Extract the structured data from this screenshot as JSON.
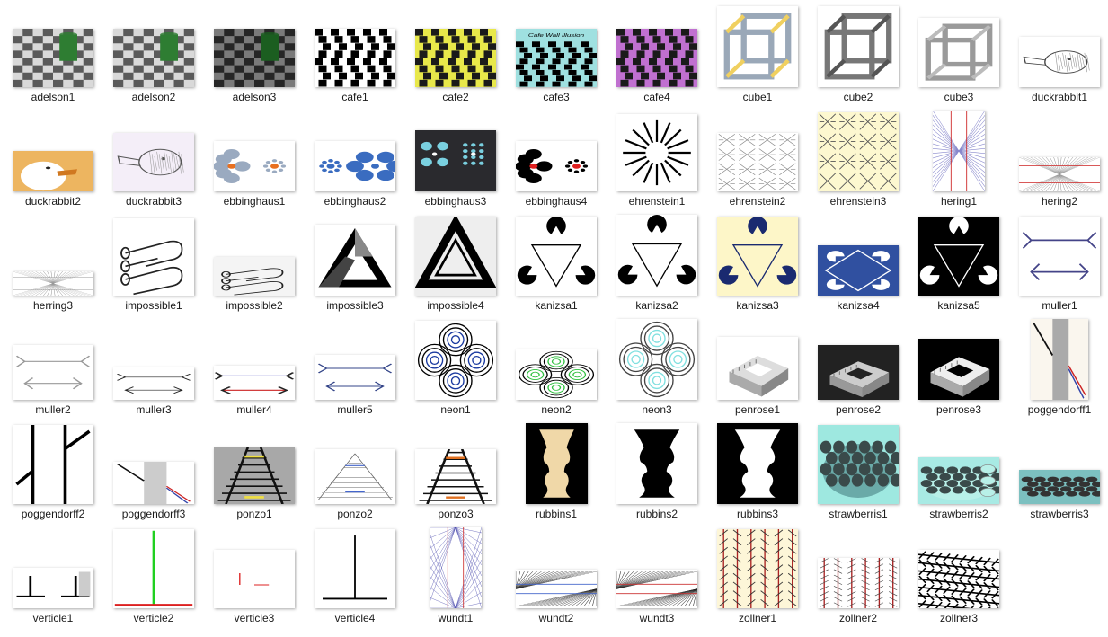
{
  "files": [
    {
      "name": "adelson1",
      "kind": "checker",
      "bg": "#d9d9d9",
      "fg": "#5a5a5a",
      "accent": "#2e7d32",
      "ratio": 0.72
    },
    {
      "name": "adelson2",
      "kind": "checker",
      "bg": "#d9d9d9",
      "fg": "#5a5a5a",
      "accent": "#2e7d32",
      "ratio": 0.72
    },
    {
      "name": "adelson3",
      "kind": "checker",
      "bg": "#7a7a7a",
      "fg": "#262626",
      "accent": "#1b5e20",
      "ratio": 0.72
    },
    {
      "name": "cafe1",
      "kind": "cafe",
      "bg": "#ffffff",
      "fg": "#000000",
      "accent": "#000000",
      "ratio": 0.72
    },
    {
      "name": "cafe2",
      "kind": "cafe",
      "bg": "#e8e84a",
      "fg": "#1a1a1a",
      "accent": "#1a1a1a",
      "ratio": 0.72
    },
    {
      "name": "cafe3",
      "kind": "cafe3",
      "bg": "#9fe0e0",
      "fg": "#000000",
      "accent": "#000000",
      "ratio": 0.72,
      "caption": "Cafe Wall Illusion"
    },
    {
      "name": "cafe4",
      "kind": "cafe",
      "bg": "#c070d0",
      "fg": "#1a1a1a",
      "accent": "#1a1a1a",
      "ratio": 0.72
    },
    {
      "name": "cube1",
      "kind": "cube",
      "bg": "#ffffff",
      "fg": "#9aa8b8",
      "accent": "#f0d060",
      "ratio": 1.0
    },
    {
      "name": "cube2",
      "kind": "cube",
      "bg": "#ffffff",
      "fg": "#777777",
      "accent": "#555555",
      "ratio": 1.0
    },
    {
      "name": "cube3",
      "kind": "cube",
      "bg": "#ffffff",
      "fg": "#9a9a9a",
      "accent": "#bbbbbb",
      "ratio": 0.85
    },
    {
      "name": "duckrabbit1",
      "kind": "sketch",
      "bg": "#ffffff",
      "fg": "#444444",
      "accent": "#888888",
      "ratio": 0.62
    },
    {
      "name": "duckrabbit2",
      "kind": "photo",
      "bg": "#e8c878",
      "fg": "#ffffff",
      "accent": "#d07820",
      "ratio": 0.5
    },
    {
      "name": "duckrabbit3",
      "kind": "sketch",
      "bg": "#f4eef8",
      "fg": "#555555",
      "accent": "#999999",
      "ratio": 0.72
    },
    {
      "name": "ebbinghaus1",
      "kind": "ebbing",
      "bg": "#ffffff",
      "fg": "#9aaac0",
      "accent": "#e87020",
      "ratio": 0.62
    },
    {
      "name": "ebbinghaus2",
      "kind": "ebbing2",
      "bg": "#ffffff",
      "fg": "#3a6cc0",
      "accent": "#3a6cc0",
      "ratio": 0.62
    },
    {
      "name": "ebbinghaus3",
      "kind": "ebbing3",
      "bg": "#2a2a2e",
      "fg": "#7ad0e0",
      "accent": "#ffffff",
      "ratio": 0.75
    },
    {
      "name": "ebbinghaus4",
      "kind": "ebbing",
      "bg": "#ffffff",
      "fg": "#000000",
      "accent": "#e02020",
      "ratio": 0.62
    },
    {
      "name": "ehrenstein1",
      "kind": "rays",
      "bg": "#ffffff",
      "fg": "#000000",
      "accent": "#000000",
      "ratio": 0.95
    },
    {
      "name": "ehrenstein2",
      "kind": "cross",
      "bg": "#ffffff",
      "fg": "#888888",
      "accent": "#888888",
      "ratio": 0.72
    },
    {
      "name": "ehrenstein3",
      "kind": "cross",
      "bg": "#fdf8d0",
      "fg": "#555555",
      "accent": "#555555",
      "ratio": 0.98
    },
    {
      "name": "hering1",
      "kind": "hering",
      "bg": "#ffffff",
      "fg": "#8888cc",
      "accent": "#cc2222",
      "ratio": 1.55
    },
    {
      "name": "hering2",
      "kind": "hering2",
      "bg": "#ffffff",
      "fg": "#999999",
      "accent": "#cc2222",
      "ratio": 0.42
    },
    {
      "name": "herring3",
      "kind": "hering2",
      "bg": "#ffffff",
      "fg": "#999999",
      "accent": "#999999",
      "ratio": 0.3
    },
    {
      "name": "impossible1",
      "kind": "tube",
      "bg": "#ffffff",
      "fg": "#222222",
      "accent": "#222222",
      "ratio": 0.95
    },
    {
      "name": "impossible2",
      "kind": "tube",
      "bg": "#f4f4f4",
      "fg": "#222222",
      "accent": "#222222",
      "ratio": 0.48
    },
    {
      "name": "impossible3",
      "kind": "tri",
      "bg": "#ffffff",
      "fg": "#000000",
      "accent": "#888888",
      "ratio": 0.88
    },
    {
      "name": "impossible4",
      "kind": "tri2",
      "bg": "#eeeeee",
      "fg": "#000000",
      "accent": "#ffffff",
      "ratio": 0.98
    },
    {
      "name": "kanizsa1",
      "kind": "kanizsa",
      "bg": "#ffffff",
      "fg": "#000000",
      "accent": "#000000",
      "ratio": 0.98
    },
    {
      "name": "kanizsa2",
      "kind": "kanizsa",
      "bg": "#ffffff",
      "fg": "#000000",
      "accent": "#000000",
      "ratio": 1.0
    },
    {
      "name": "kanizsa3",
      "kind": "kanizsa",
      "bg": "#fdf6c8",
      "fg": "#1a2a70",
      "accent": "#1a2a70",
      "ratio": 0.98
    },
    {
      "name": "kanizsa4",
      "kind": "kanizsa4",
      "bg": "#3050a0",
      "fg": "#ffffff",
      "accent": "#ffffff",
      "ratio": 0.62
    },
    {
      "name": "kanizsa5",
      "kind": "kanizsa",
      "bg": "#000000",
      "fg": "#ffffff",
      "accent": "#ffffff",
      "ratio": 0.98
    },
    {
      "name": "muller1",
      "kind": "muller",
      "bg": "#ffffff",
      "fg": "#444488",
      "accent": "#444488",
      "ratio": 0.98
    },
    {
      "name": "muller2",
      "kind": "muller",
      "bg": "#ffffff",
      "fg": "#999999",
      "accent": "#999999",
      "ratio": 0.68
    },
    {
      "name": "muller3",
      "kind": "muller",
      "bg": "#ffffff",
      "fg": "#222222",
      "accent": "#222222",
      "ratio": 0.4
    },
    {
      "name": "muller4",
      "kind": "muller4",
      "bg": "#ffffff",
      "fg": "#1a1ab0",
      "accent": "#cc2222",
      "ratio": 0.42
    },
    {
      "name": "muller5",
      "kind": "muller",
      "bg": "#ffffff",
      "fg": "#334488",
      "accent": "#334488",
      "ratio": 0.55
    },
    {
      "name": "neon1",
      "kind": "neon",
      "bg": "#ffffff",
      "fg": "#000000",
      "accent": "#1a3aa0",
      "ratio": 0.98
    },
    {
      "name": "neon2",
      "kind": "neon",
      "bg": "#ffffff",
      "fg": "#000000",
      "accent": "#30c040",
      "ratio": 0.62
    },
    {
      "name": "neon3",
      "kind": "neon",
      "bg": "#ffffff",
      "fg": "#444444",
      "accent": "#80e0e0",
      "ratio": 1.0
    },
    {
      "name": "penrose1",
      "kind": "stairs",
      "bg": "#ffffff",
      "fg": "#aaaaaa",
      "accent": "#dddddd",
      "ratio": 0.78
    },
    {
      "name": "penrose2",
      "kind": "stairs",
      "bg": "#222222",
      "fg": "#999999",
      "accent": "#cccccc",
      "ratio": 0.68
    },
    {
      "name": "penrose3",
      "kind": "stairs",
      "bg": "#000000",
      "fg": "#aaaaaa",
      "accent": "#eeeeee",
      "ratio": 0.75
    },
    {
      "name": "poggendorff1",
      "kind": "pogg",
      "bg": "#faf6ee",
      "fg": "#aaaaaa",
      "accent": "#3344aa",
      "ratio": 1.4
    },
    {
      "name": "poggendorff2",
      "kind": "pogg2",
      "bg": "#ffffff",
      "fg": "#000000",
      "accent": "#000000",
      "ratio": 0.98
    },
    {
      "name": "poggendorff3",
      "kind": "pogg",
      "bg": "#ffffff",
      "fg": "#cccccc",
      "accent": "#3344aa",
      "ratio": 0.52
    },
    {
      "name": "ponzo1",
      "kind": "rail",
      "bg": "#a8a8a8",
      "fg": "#111111",
      "accent": "#f0e040",
      "ratio": 0.7
    },
    {
      "name": "ponzo2",
      "kind": "ponzo2",
      "bg": "#ffffff",
      "fg": "#666666",
      "accent": "#4466cc",
      "ratio": 0.68
    },
    {
      "name": "ponzo3",
      "kind": "rail",
      "bg": "#ffffff",
      "fg": "#111111",
      "accent": "#e07020",
      "ratio": 0.68
    },
    {
      "name": "rubbins1",
      "kind": "vase",
      "bg": "#000000",
      "fg": "#f0d8a8",
      "accent": "#f0d8a8",
      "ratio": 1.3
    },
    {
      "name": "rubbins2",
      "kind": "vase2",
      "bg": "#ffffff",
      "fg": "#000000",
      "accent": "#000000",
      "ratio": 1.0
    },
    {
      "name": "rubbins3",
      "kind": "vase",
      "bg": "#000000",
      "fg": "#ffffff",
      "accent": "#ffffff",
      "ratio": 1.0
    },
    {
      "name": "strawberris1",
      "kind": "straw",
      "bg": "#9ee8e0",
      "fg": "#3a4a4a",
      "accent": "#6aaaa8",
      "ratio": 0.98
    },
    {
      "name": "strawberris2",
      "kind": "straw2",
      "bg": "#a8eae4",
      "fg": "#3a4a4a",
      "accent": "#b8f0e8",
      "ratio": 0.58
    },
    {
      "name": "strawberris3",
      "kind": "straw3",
      "bg": "#7cc0c0",
      "fg": "#333333",
      "accent": "#555555",
      "ratio": 0.42
    },
    {
      "name": "verticle1",
      "kind": "tee1",
      "bg": "#ffffff",
      "fg": "#000000",
      "accent": "#cccccc",
      "ratio": 0.5
    },
    {
      "name": "verticle2",
      "kind": "tee2",
      "bg": "#ffffff",
      "fg": "#20d020",
      "accent": "#dd2020",
      "ratio": 0.98
    },
    {
      "name": "verticle3",
      "kind": "tee3",
      "bg": "#ffffff",
      "fg": "#dd2020",
      "accent": "#dd2020",
      "ratio": 0.72
    },
    {
      "name": "verticle4",
      "kind": "tee4",
      "bg": "#ffffff",
      "fg": "#000000",
      "accent": "#000000",
      "ratio": 0.98
    },
    {
      "name": "wundt1",
      "kind": "wundt1",
      "bg": "#ffffff",
      "fg": "#4444aa",
      "accent": "#cc3333",
      "ratio": 1.55
    },
    {
      "name": "wundt2",
      "kind": "wundt",
      "bg": "#ffffff",
      "fg": "#222222",
      "accent": "#4466cc",
      "ratio": 0.48
    },
    {
      "name": "wundt3",
      "kind": "wundt",
      "bg": "#ffffff",
      "fg": "#222222",
      "accent": "#cc3333",
      "ratio": 0.48
    },
    {
      "name": "zollner1",
      "kind": "zoll",
      "bg": "#fdf6d8",
      "fg": "#aa2222",
      "accent": "#333333",
      "ratio": 0.98
    },
    {
      "name": "zollner2",
      "kind": "zoll",
      "bg": "#ffffff",
      "fg": "#aa2222",
      "accent": "#444444",
      "ratio": 0.62
    },
    {
      "name": "zollner3",
      "kind": "zoll3",
      "bg": "#ffffff",
      "fg": "#000000",
      "accent": "#000000",
      "ratio": 0.72
    }
  ]
}
